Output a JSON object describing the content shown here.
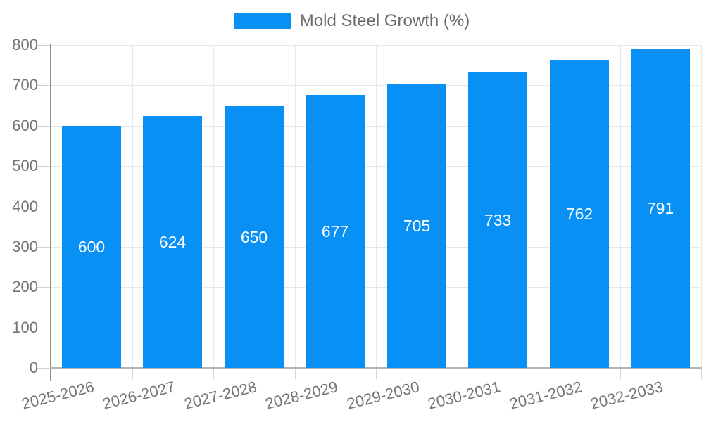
{
  "legend": {
    "label": "Mold Steel Growth (%)"
  },
  "chart_data": {
    "type": "bar",
    "title": "Mold Steel Growth (%)",
    "categories": [
      "2025-2026",
      "2026-2027",
      "2027-2028",
      "2028-2029",
      "2029-2030",
      "2030-2031",
      "2031-2032",
      "2032-2033"
    ],
    "values": [
      600,
      624,
      650,
      677,
      705,
      733,
      762,
      791
    ],
    "xlabel": "",
    "ylabel": "",
    "ylim": [
      0,
      800
    ],
    "ytick_step": 100,
    "yticks": [
      0,
      100,
      200,
      300,
      400,
      500,
      600,
      700,
      800
    ],
    "grid": true,
    "legend_position": "top-center",
    "bar_value_labels_inside": true,
    "colors": {
      "bar": "#0990f4",
      "bar_value_label": "#ffffff",
      "axis_label": "#757575",
      "legend_text": "#6b6b6b",
      "gridline": "#e8e8e8",
      "y_axis_line": "#8c8c8c",
      "x_axis_line": "#b3b3b3"
    }
  }
}
